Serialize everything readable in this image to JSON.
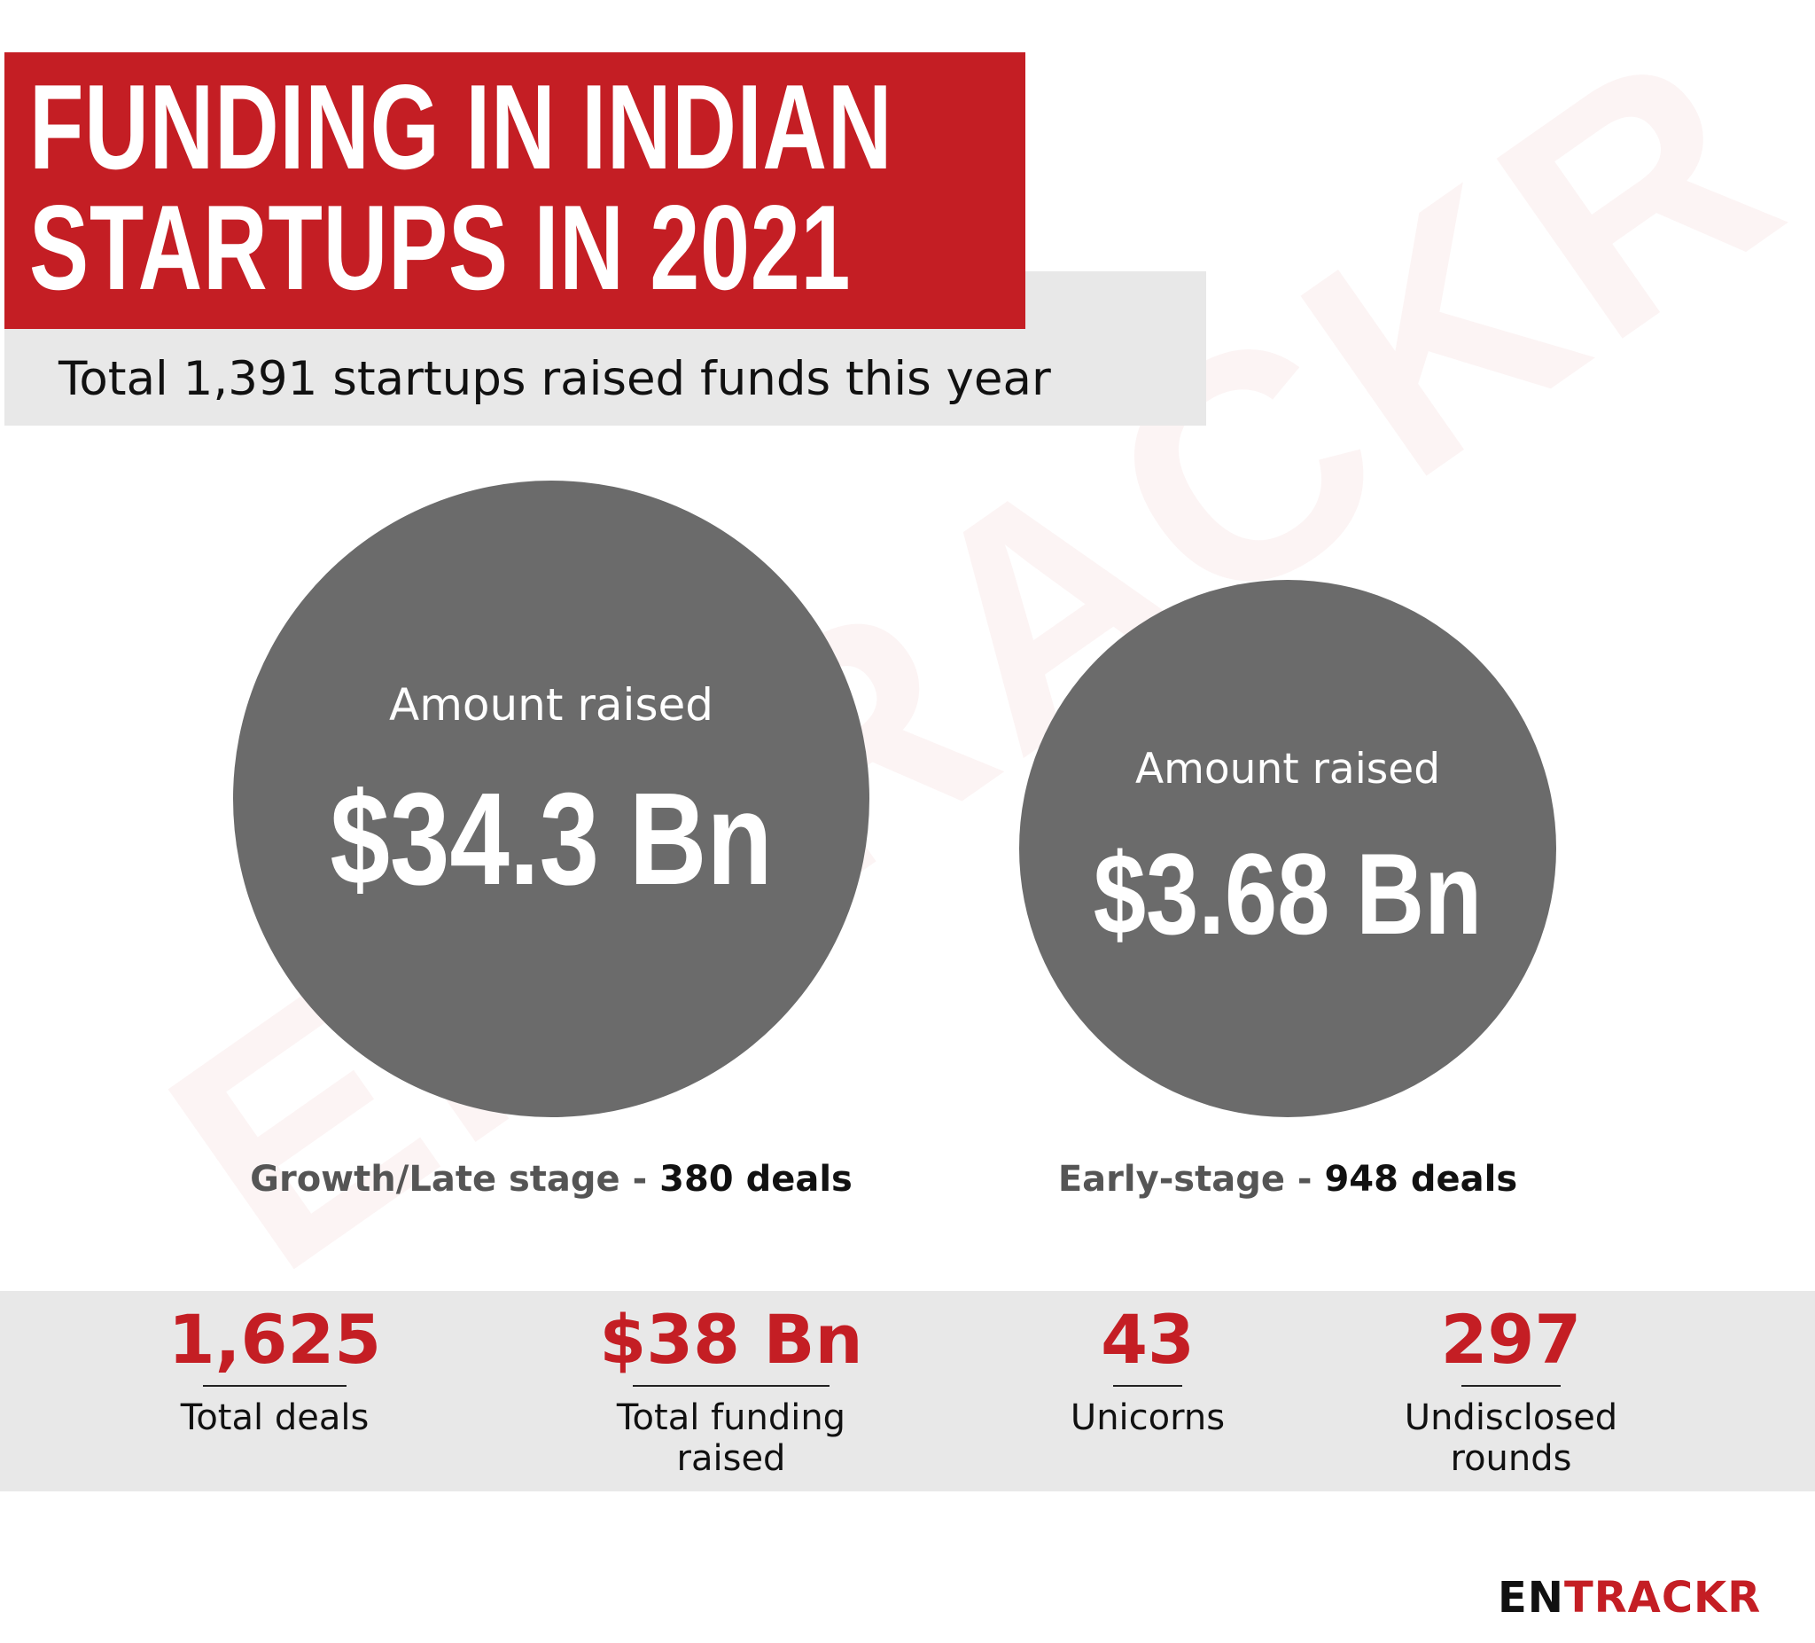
{
  "header": {
    "title": "FUNDING IN INDIAN\nSTARTUPS IN 2021",
    "subtitle": "Total 1,391 startups raised funds this year"
  },
  "circles": [
    {
      "label": "Amount raised",
      "value": "$34.3 Bn",
      "stage": "Growth/Late stage",
      "separator": " - ",
      "deals": "380 deals"
    },
    {
      "label": "Amount raised",
      "value": "$3.68 Bn",
      "stage": "Early-stage",
      "separator": " - ",
      "deals": "948 deals"
    }
  ],
  "stats": [
    {
      "value": "1,625",
      "label": "Total deals"
    },
    {
      "value": "$38 Bn",
      "label": "Total funding\nraised"
    },
    {
      "value": "43",
      "label": "Unicorns"
    },
    {
      "value": "297",
      "label": "Undisclosed\nrounds"
    }
  ],
  "brand": {
    "logo_part1": "EN",
    "logo_part2": "TRACKR",
    "watermark": "ENTRACKR",
    "accent_color": "#c41e24",
    "circle_color": "#6b6b6b"
  }
}
